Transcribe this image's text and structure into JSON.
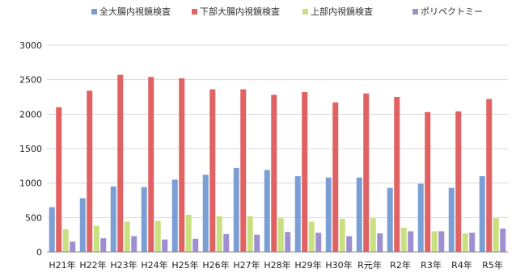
{
  "chart_data": {
    "type": "bar",
    "title": "",
    "xlabel": "",
    "ylabel": "",
    "ylim": [
      0,
      3000
    ],
    "yticks": [
      0,
      500,
      1000,
      1500,
      2000,
      2500,
      3000
    ],
    "grid": true,
    "legend_position": "top",
    "categories": [
      "H21年",
      "H22年",
      "H23年",
      "H24年",
      "H25年",
      "H26年",
      "H27年",
      "H28年",
      "H29年",
      "H30年",
      "R元年",
      "R2年",
      "R3年",
      "R4年",
      "R5年"
    ],
    "series": [
      {
        "name": "全大腸内視鏡検査",
        "color": "#7b9fd4",
        "values": [
          650,
          780,
          950,
          940,
          1050,
          1120,
          1220,
          1190,
          1100,
          1080,
          1080,
          930,
          990,
          930,
          1100
        ]
      },
      {
        "name": "下部大腸内視鏡検査",
        "color": "#e06262",
        "values": [
          2100,
          2340,
          2570,
          2540,
          2520,
          2360,
          2360,
          2280,
          2320,
          2170,
          2300,
          2250,
          2030,
          2040,
          2220
        ]
      },
      {
        "name": "上部内視鏡検査",
        "color": "#c8e080",
        "values": [
          330,
          380,
          440,
          450,
          540,
          520,
          520,
          490,
          440,
          480,
          490,
          350,
          300,
          270,
          490
        ]
      },
      {
        "name": "ポリペクトミー",
        "color": "#9f8fd0",
        "values": [
          150,
          200,
          230,
          180,
          190,
          260,
          250,
          290,
          280,
          230,
          270,
          300,
          300,
          280,
          340
        ]
      }
    ]
  }
}
